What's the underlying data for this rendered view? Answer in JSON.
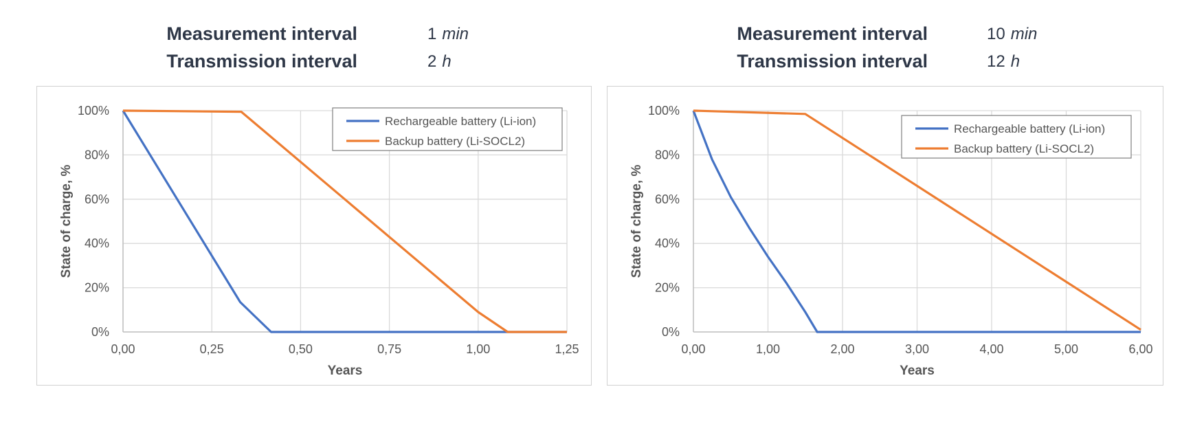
{
  "panels": [
    {
      "params": {
        "measurement_label": "Measurement interval",
        "measurement_value": "1",
        "measurement_unit": "min",
        "transmission_label": "Transmission interval",
        "transmission_value": "2",
        "transmission_unit": "h"
      }
    },
    {
      "params": {
        "measurement_label": "Measurement interval",
        "measurement_value": "10",
        "measurement_unit": "min",
        "transmission_label": "Transmission interval",
        "transmission_value": "12",
        "transmission_unit": "h"
      }
    }
  ],
  "chart_data": [
    {
      "type": "line",
      "xlabel": "Years",
      "ylabel": "State of charge, %",
      "xlim": [
        0,
        1.25
      ],
      "ylim": [
        0,
        100
      ],
      "x_ticks": [
        "0,00",
        "0,25",
        "0,50",
        "0,75",
        "1,00",
        "1,25"
      ],
      "y_ticks": [
        "0%",
        "20%",
        "40%",
        "60%",
        "80%",
        "100%"
      ],
      "grid": true,
      "legend_position": "top-right",
      "series": [
        {
          "name": "Rechargeable battery (Li-ion)",
          "color": "#4472c4",
          "points": [
            [
              0,
              100
            ],
            [
              0.33,
              13.5
            ],
            [
              0.417,
              0
            ],
            [
              1.25,
              0
            ]
          ]
        },
        {
          "name": "Backup battery (Li-SOCL2)",
          "color": "#ed7d31",
          "points": [
            [
              0,
              100
            ],
            [
              0.333,
              99.5
            ],
            [
              1.0,
              9
            ],
            [
              1.083,
              0
            ],
            [
              1.25,
              0
            ]
          ]
        }
      ]
    },
    {
      "type": "line",
      "xlabel": "Years",
      "ylabel": "State of charge, %",
      "xlim": [
        0,
        6
      ],
      "ylim": [
        0,
        100
      ],
      "x_ticks": [
        "0,00",
        "1,00",
        "2,00",
        "3,00",
        "4,00",
        "5,00",
        "6,00"
      ],
      "y_ticks": [
        "0%",
        "20%",
        "40%",
        "60%",
        "80%",
        "100%"
      ],
      "grid": true,
      "legend_position": "top-right",
      "series": [
        {
          "name": "Rechargeable battery (Li-ion)",
          "color": "#4472c4",
          "points": [
            [
              0,
              100
            ],
            [
              0.25,
              78
            ],
            [
              0.5,
              61
            ],
            [
              0.75,
              47
            ],
            [
              1.0,
              34
            ],
            [
              1.25,
              22
            ],
            [
              1.5,
              9
            ],
            [
              1.66,
              0
            ],
            [
              6.0,
              0
            ]
          ]
        },
        {
          "name": "Backup battery (Li-SOCL2)",
          "color": "#ed7d31",
          "points": [
            [
              0,
              100
            ],
            [
              1.5,
              98.5
            ],
            [
              6.0,
              1
            ]
          ]
        }
      ]
    }
  ]
}
